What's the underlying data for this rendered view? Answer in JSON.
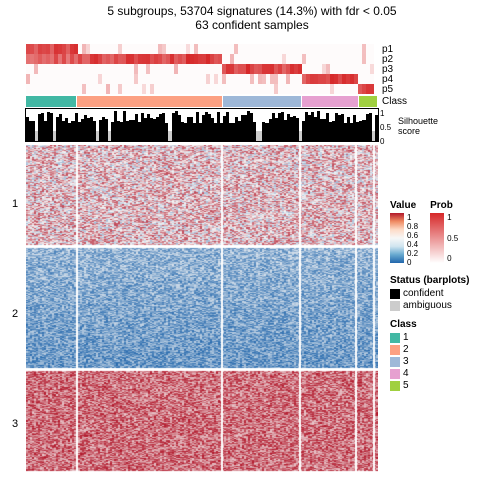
{
  "title_line1": "5 subgroups, 53704 signatures (14.3%) with fdr < 0.05",
  "title_line2": "63 confident samples",
  "prob_labels": [
    "p1",
    "p2",
    "p3",
    "p4",
    "p5"
  ],
  "class_colors": [
    "#42b8a4",
    "#fca082",
    "#9eb8d8",
    "#e6a0d0",
    "#a0d040"
  ],
  "class_widths": [
    50,
    145,
    78,
    56,
    18
  ],
  "class_label": "Class",
  "sil_label": "Silhouette\nscore",
  "sil_axis": [
    "1",
    "0.5",
    "0"
  ],
  "heatmap_groups": {
    "labels": [
      "1",
      "2",
      "3"
    ],
    "heights": [
      100,
      120,
      100
    ]
  },
  "value_legend": {
    "title": "Value",
    "colors": [
      "#b2182b",
      "#ef8a62",
      "#fddbc7",
      "#f7f7f7",
      "#d1e5f0",
      "#67a9cf",
      "#2166ac"
    ],
    "labels": [
      "1",
      "0.8",
      "0.6",
      "0.4",
      "0.2",
      "0"
    ]
  },
  "prob_legend": {
    "title": "Prob",
    "colors": [
      "#d62728",
      "#ffffff"
    ],
    "labels": [
      "1",
      "0.5",
      "0"
    ]
  },
  "status_legend": {
    "title": "Status (barplots)",
    "items": [
      {
        "color": "#000000",
        "label": "confident"
      },
      {
        "color": "#cccccc",
        "label": "ambiguous"
      }
    ]
  },
  "class_legend": {
    "title": "Class",
    "items": [
      {
        "color": "#42b8a4",
        "label": "1"
      },
      {
        "color": "#fca082",
        "label": "2"
      },
      {
        "color": "#9eb8d8",
        "label": "3"
      },
      {
        "color": "#e6a0d0",
        "label": "4"
      },
      {
        "color": "#a0d040",
        "label": "5"
      }
    ]
  },
  "red": "#d62728",
  "white": "#ffffff",
  "blue": "#2166ac"
}
